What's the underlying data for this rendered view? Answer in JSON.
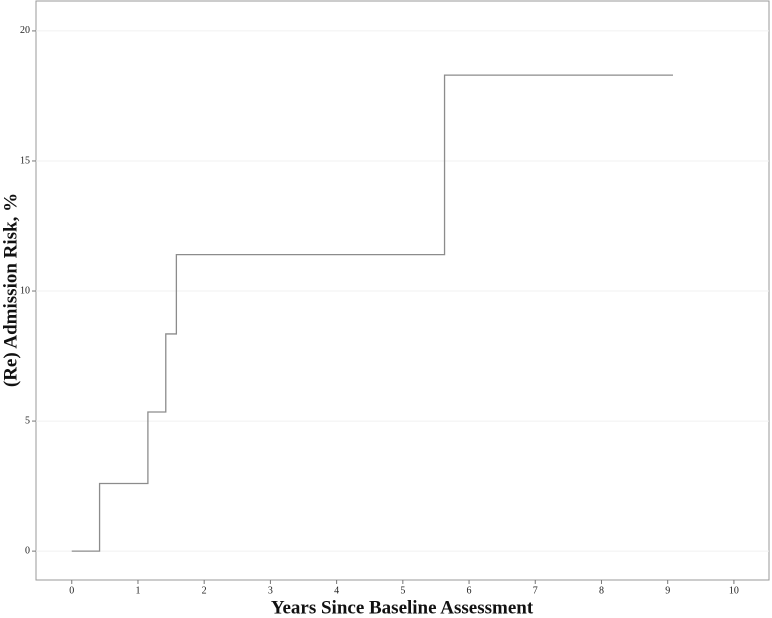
{
  "chart_data": {
    "type": "step",
    "x_label": "Years Since Baseline Assessment",
    "y_label": "(Re) Admission Risk, %",
    "x": [
      0,
      0.42,
      1.15,
      1.42,
      1.58,
      5.63,
      9.08
    ],
    "values": [
      0,
      2.6,
      5.35,
      8.35,
      11.4,
      18.3,
      18.3
    ],
    "color": "#8c8c8c",
    "xlim": [
      -0.54,
      10.53
    ],
    "xticks": [
      0,
      1,
      2,
      3,
      4,
      5,
      6,
      7,
      8,
      9,
      10
    ],
    "ylim": [
      -1.11,
      21.15
    ],
    "yticks": [
      0,
      5,
      10,
      15,
      20
    ],
    "grid": true
  }
}
